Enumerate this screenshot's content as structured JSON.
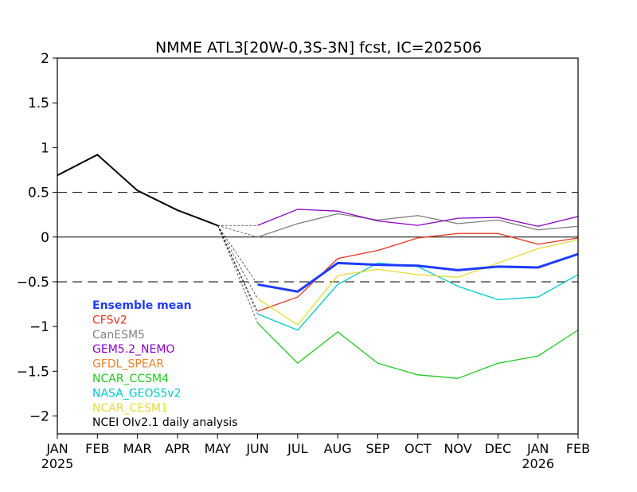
{
  "chart_data": {
    "type": "line",
    "title": "NMME ATL3[20W-0,3S-3N] fcst, IC=202506",
    "x_months": [
      "JAN",
      "FEB",
      "MAR",
      "APR",
      "MAY",
      "JUN",
      "JUL",
      "AUG",
      "SEP",
      "OCT",
      "NOV",
      "DEC",
      "JAN",
      "FEB"
    ],
    "x_years": [
      {
        "index": 0,
        "label": "2025"
      },
      {
        "index": 12,
        "label": "2026"
      }
    ],
    "y_ticks": [
      "2",
      "1.5",
      "1",
      "0.5",
      "0",
      "-0.5",
      "-1",
      "-1.5",
      "-2"
    ],
    "ylim": [
      -2.2,
      2
    ],
    "reference_lines": [
      {
        "y": 0.5,
        "style": "dashed"
      },
      {
        "y": 0,
        "style": "solid"
      },
      {
        "y": -0.5,
        "style": "dashed"
      }
    ],
    "legend_position": "bottom-left",
    "observed": {
      "name": "NCEI OIv2.1 daily analysis",
      "color": "#000000",
      "values": [
        0.69,
        0.92,
        0.52,
        0.3,
        0.13
      ]
    },
    "series": [
      {
        "name": "Ensemble mean",
        "color": "#1e3cff",
        "width": 3,
        "values": [
          null,
          null,
          null,
          null,
          null,
          -0.53,
          -0.61,
          -0.29,
          -0.31,
          -0.32,
          -0.37,
          -0.33,
          -0.34,
          -0.19
        ]
      },
      {
        "name": "CFSv2",
        "color": "#e6321e",
        "width": 1.3,
        "values": [
          null,
          null,
          null,
          null,
          null,
          -0.83,
          -0.67,
          -0.24,
          -0.15,
          -0.01,
          0.04,
          0.04,
          -0.08,
          -0.01
        ]
      },
      {
        "name": "CanESM5",
        "color": "#808080",
        "width": 1.3,
        "values": [
          null,
          null,
          null,
          null,
          null,
          0.0,
          0.15,
          0.26,
          0.19,
          0.24,
          0.15,
          0.19,
          0.08,
          0.12
        ]
      },
      {
        "name": "GEM5.2_NEMO",
        "color": "#8c00c8",
        "width": 1.3,
        "values": [
          null,
          null,
          null,
          null,
          null,
          0.13,
          0.31,
          0.29,
          0.18,
          0.13,
          0.21,
          0.22,
          0.12,
          0.23
        ]
      },
      {
        "name": "GFDL_SPEAR",
        "color": "#f08228",
        "width": 1.3,
        "values": []
      },
      {
        "name": "NCAR_CCSM4",
        "color": "#1ec81e",
        "width": 1.3,
        "values": [
          null,
          null,
          null,
          null,
          null,
          -0.96,
          -1.41,
          -1.06,
          -1.41,
          -1.54,
          -1.58,
          -1.41,
          -1.33,
          -1.04
        ]
      },
      {
        "name": "NASA_GEOS5v2",
        "color": "#00c8c8",
        "width": 1.3,
        "values": [
          null,
          null,
          null,
          null,
          null,
          -0.86,
          -1.04,
          -0.53,
          -0.29,
          -0.33,
          -0.55,
          -0.7,
          -0.67,
          -0.42
        ]
      },
      {
        "name": "NCAR_CESM1",
        "color": "#e6dc32",
        "width": 1.3,
        "values": [
          null,
          null,
          null,
          null,
          null,
          -0.69,
          -0.98,
          -0.43,
          -0.36,
          -0.42,
          -0.45,
          -0.29,
          -0.13,
          -0.03
        ]
      }
    ]
  }
}
